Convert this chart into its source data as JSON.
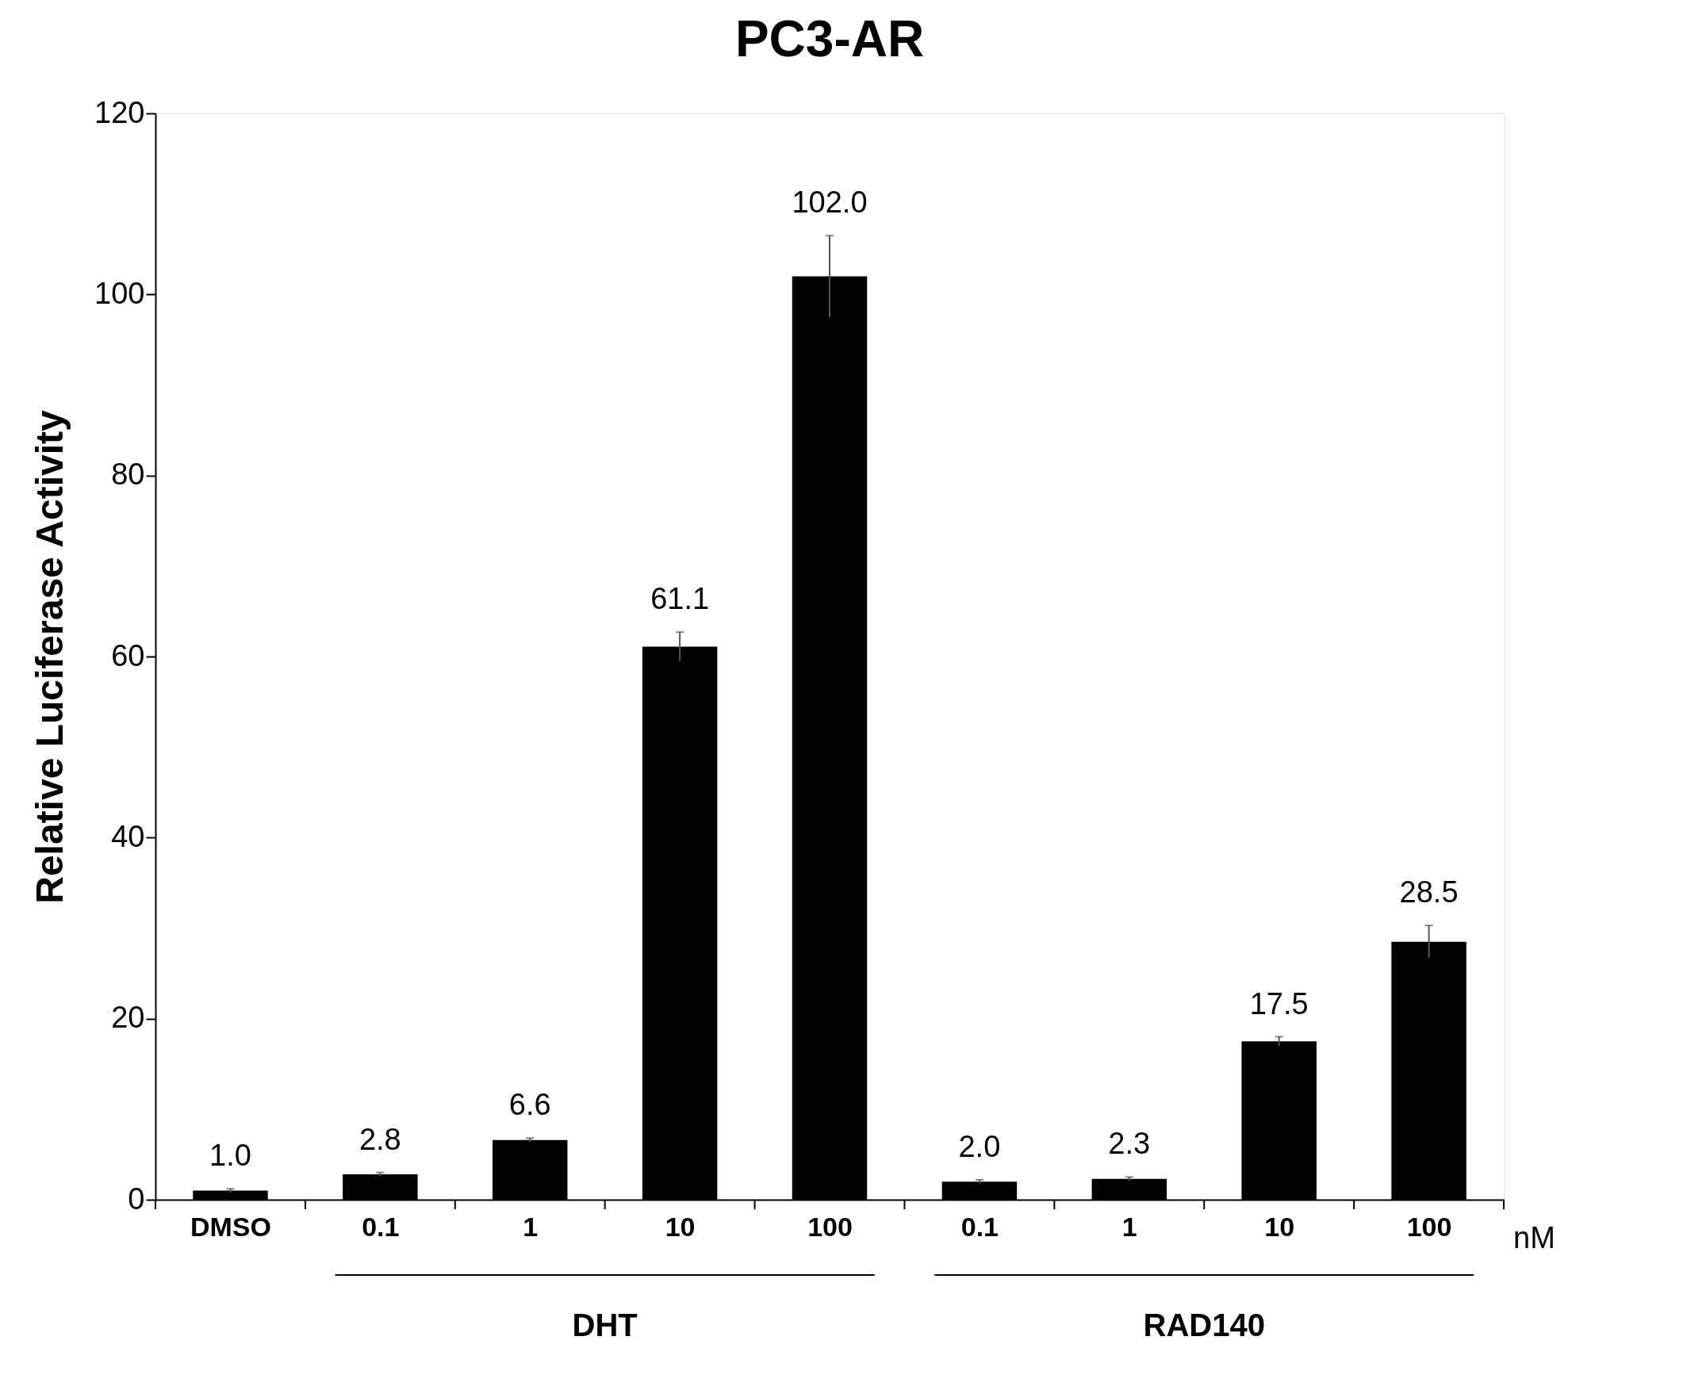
{
  "chart_data": {
    "type": "bar",
    "title": "PC3-AR",
    "ylabel": "Relative Luciferase Activity",
    "categories": [
      "DMSO",
      "0.1",
      "1",
      "10",
      "100",
      "0.1",
      "1",
      "10",
      "100"
    ],
    "values": [
      1.0,
      2.8,
      6.6,
      61.1,
      102.0,
      2.0,
      2.3,
      17.5,
      28.5
    ],
    "errors": [
      0.2,
      0.2,
      0.2,
      1.6,
      4.5,
      0.2,
      0.2,
      0.5,
      1.8
    ],
    "value_labels": [
      "1.0",
      "2.8",
      "6.6",
      "61.1",
      "102.0",
      "2.0",
      "2.3",
      "17.5",
      "28.5"
    ],
    "color": "#000000",
    "ylim": [
      0,
      120
    ],
    "yticks": [
      0,
      20,
      40,
      60,
      80,
      100,
      120
    ],
    "grid": false,
    "annotations": [
      "nM",
      "DHT",
      "RAD140"
    ]
  }
}
